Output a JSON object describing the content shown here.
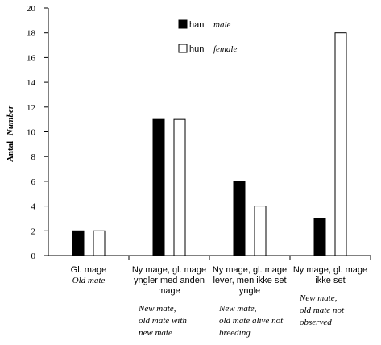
{
  "chart_data": {
    "type": "bar",
    "categories": [
      {
        "lines": [
          "Gl. mage"
        ],
        "italic_lines": [
          "Old mate"
        ]
      },
      {
        "lines": [
          "Ny mage, gl. mage",
          "yngler med anden",
          "mage"
        ],
        "italic_lines": [
          "New mate,",
          "old mate with",
          "new mate"
        ]
      },
      {
        "lines": [
          "Ny mage, gl. mage",
          "lever, men ikke set",
          "yngle"
        ],
        "italic_lines": [
          "New mate,",
          "old mate alive not",
          "breeding"
        ]
      },
      {
        "lines": [
          "Ny mage, gl. mage",
          "ikke set"
        ],
        "italic_lines": [
          "New mate,",
          "old mate not",
          "observed"
        ]
      }
    ],
    "series": [
      {
        "name": "han",
        "name_en": "male",
        "color": "#000000",
        "values": [
          2,
          11,
          6,
          3
        ]
      },
      {
        "name": "hun",
        "name_en": "female",
        "color": "#ffffff",
        "values": [
          2,
          11,
          4,
          18
        ]
      }
    ],
    "ylabel": "Antal",
    "ylabel_en": "Number",
    "ylim": [
      0,
      20
    ],
    "yticks": [
      "0",
      "2",
      "4",
      "6",
      "8",
      "10",
      "12",
      "14",
      "16",
      "18",
      "20"
    ],
    "grid": false,
    "legend_position": "top-center"
  }
}
